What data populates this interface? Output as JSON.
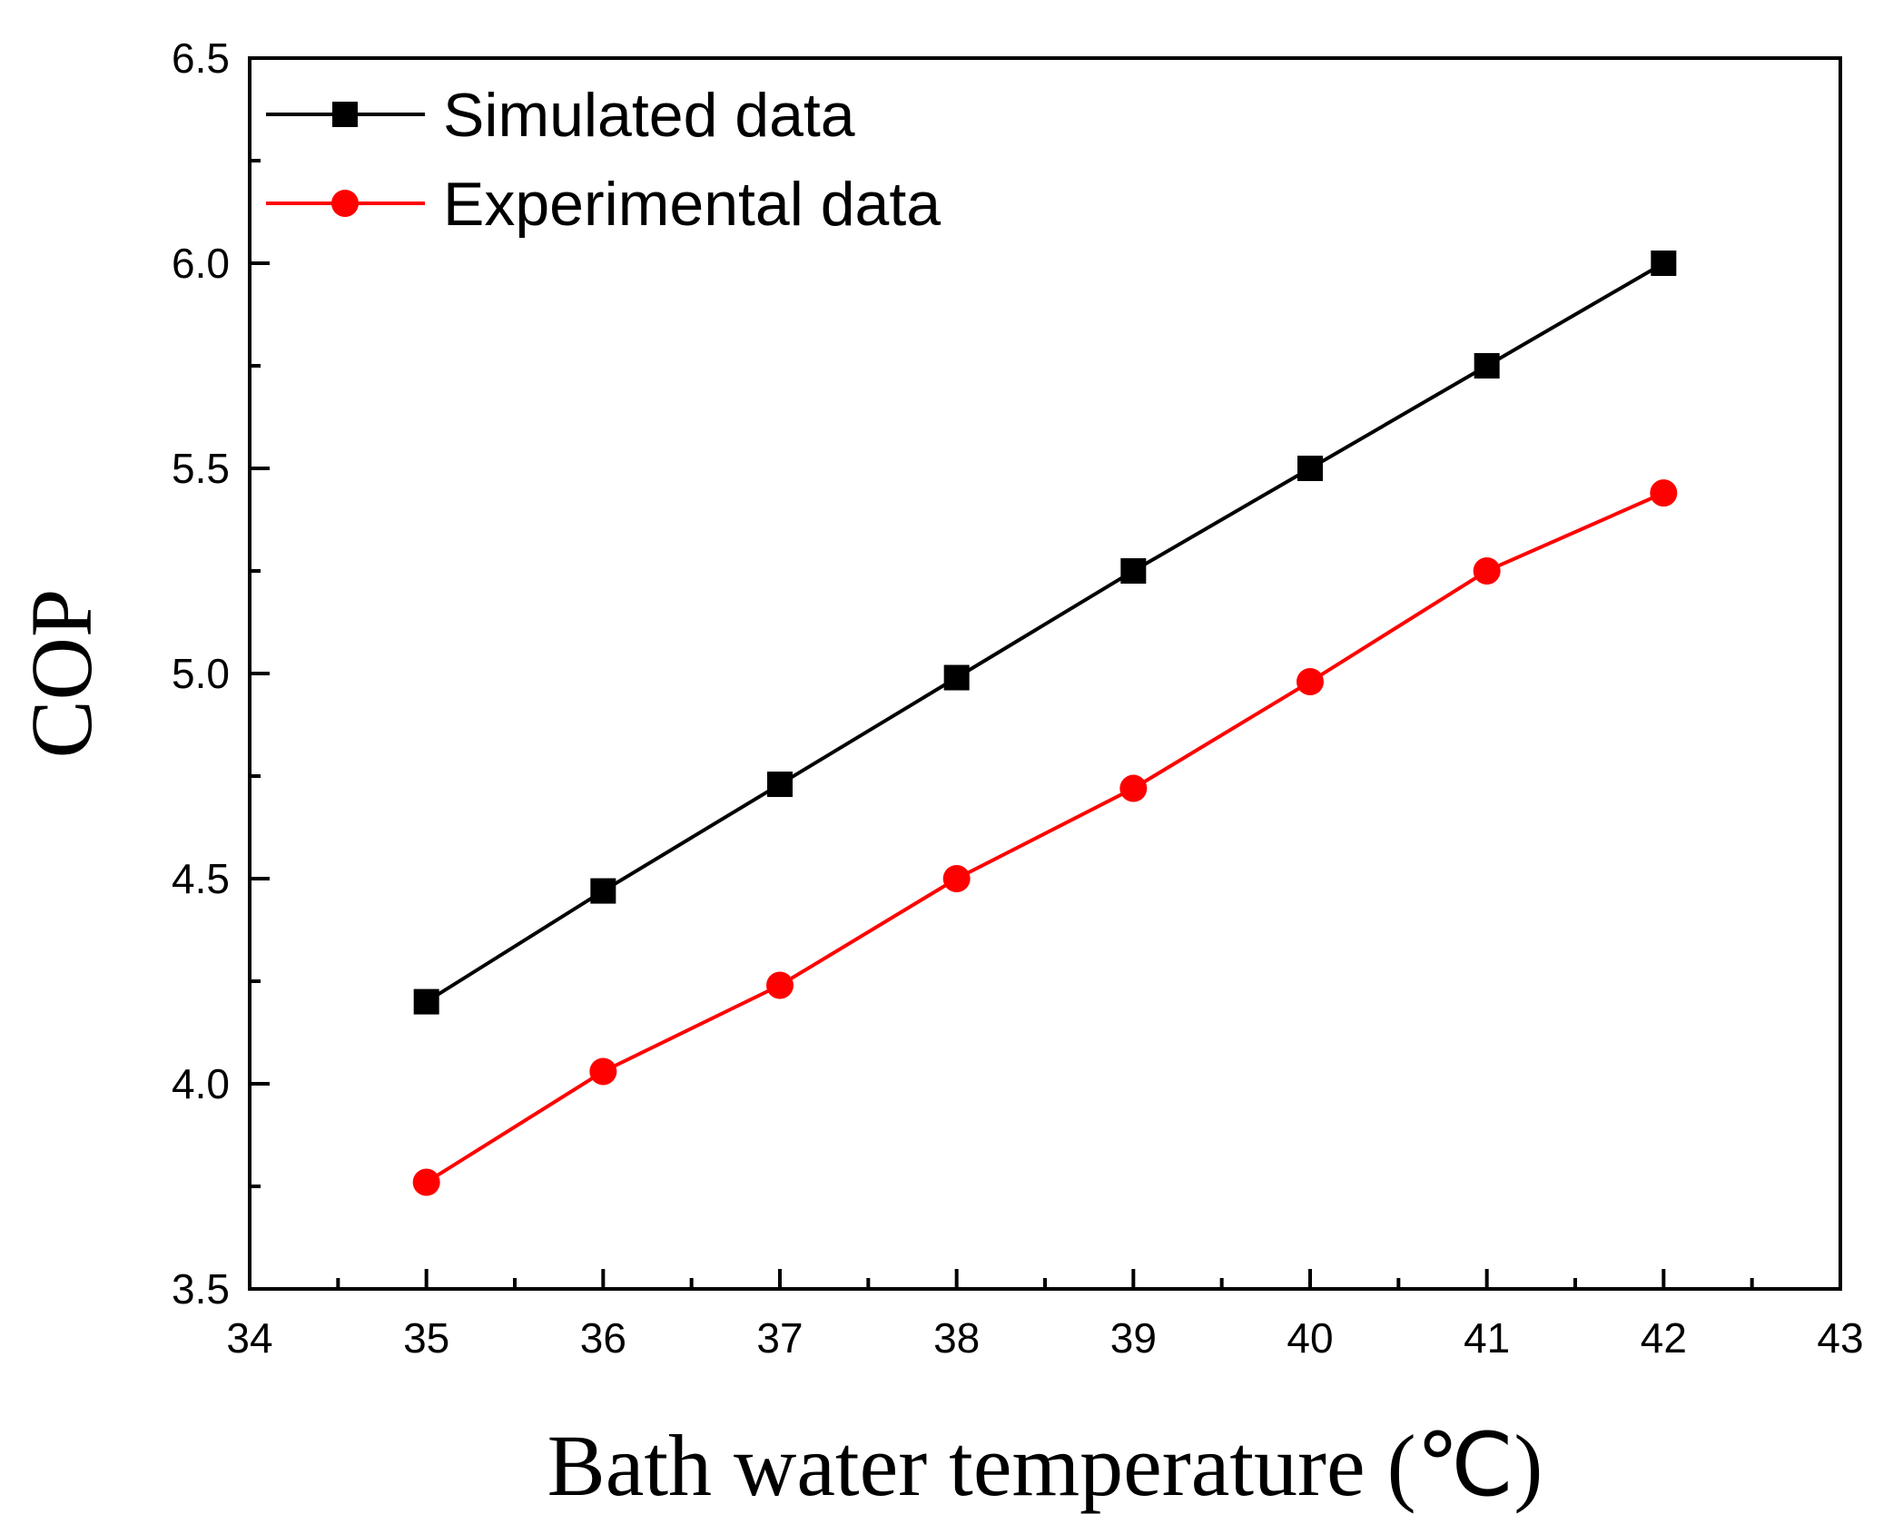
{
  "chart_data": {
    "type": "line",
    "title": "",
    "xlabel": "Bath water temperature (℃)",
    "ylabel": "COP",
    "xlim": [
      34,
      43
    ],
    "ylim": [
      3.5,
      6.5
    ],
    "x_ticks": [
      "34",
      "35",
      "36",
      "37",
      "38",
      "39",
      "40",
      "41",
      "42",
      "43"
    ],
    "y_ticks": [
      "3.5",
      "4.0",
      "4.5",
      "5.0",
      "5.5",
      "6.0",
      "6.5"
    ],
    "grid": false,
    "legend_position": "top-left",
    "x": [
      35,
      36,
      37,
      38,
      39,
      40,
      41,
      42
    ],
    "series": [
      {
        "name": "Simulated data",
        "color": "#000000",
        "marker": "square",
        "values": [
          4.2,
          4.47,
          4.73,
          4.99,
          5.25,
          5.5,
          5.75,
          6.0
        ]
      },
      {
        "name": "Experimental data",
        "color": "#ff0000",
        "marker": "circle",
        "values": [
          3.76,
          4.03,
          4.24,
          4.5,
          4.72,
          4.98,
          5.25,
          5.44
        ]
      }
    ]
  }
}
